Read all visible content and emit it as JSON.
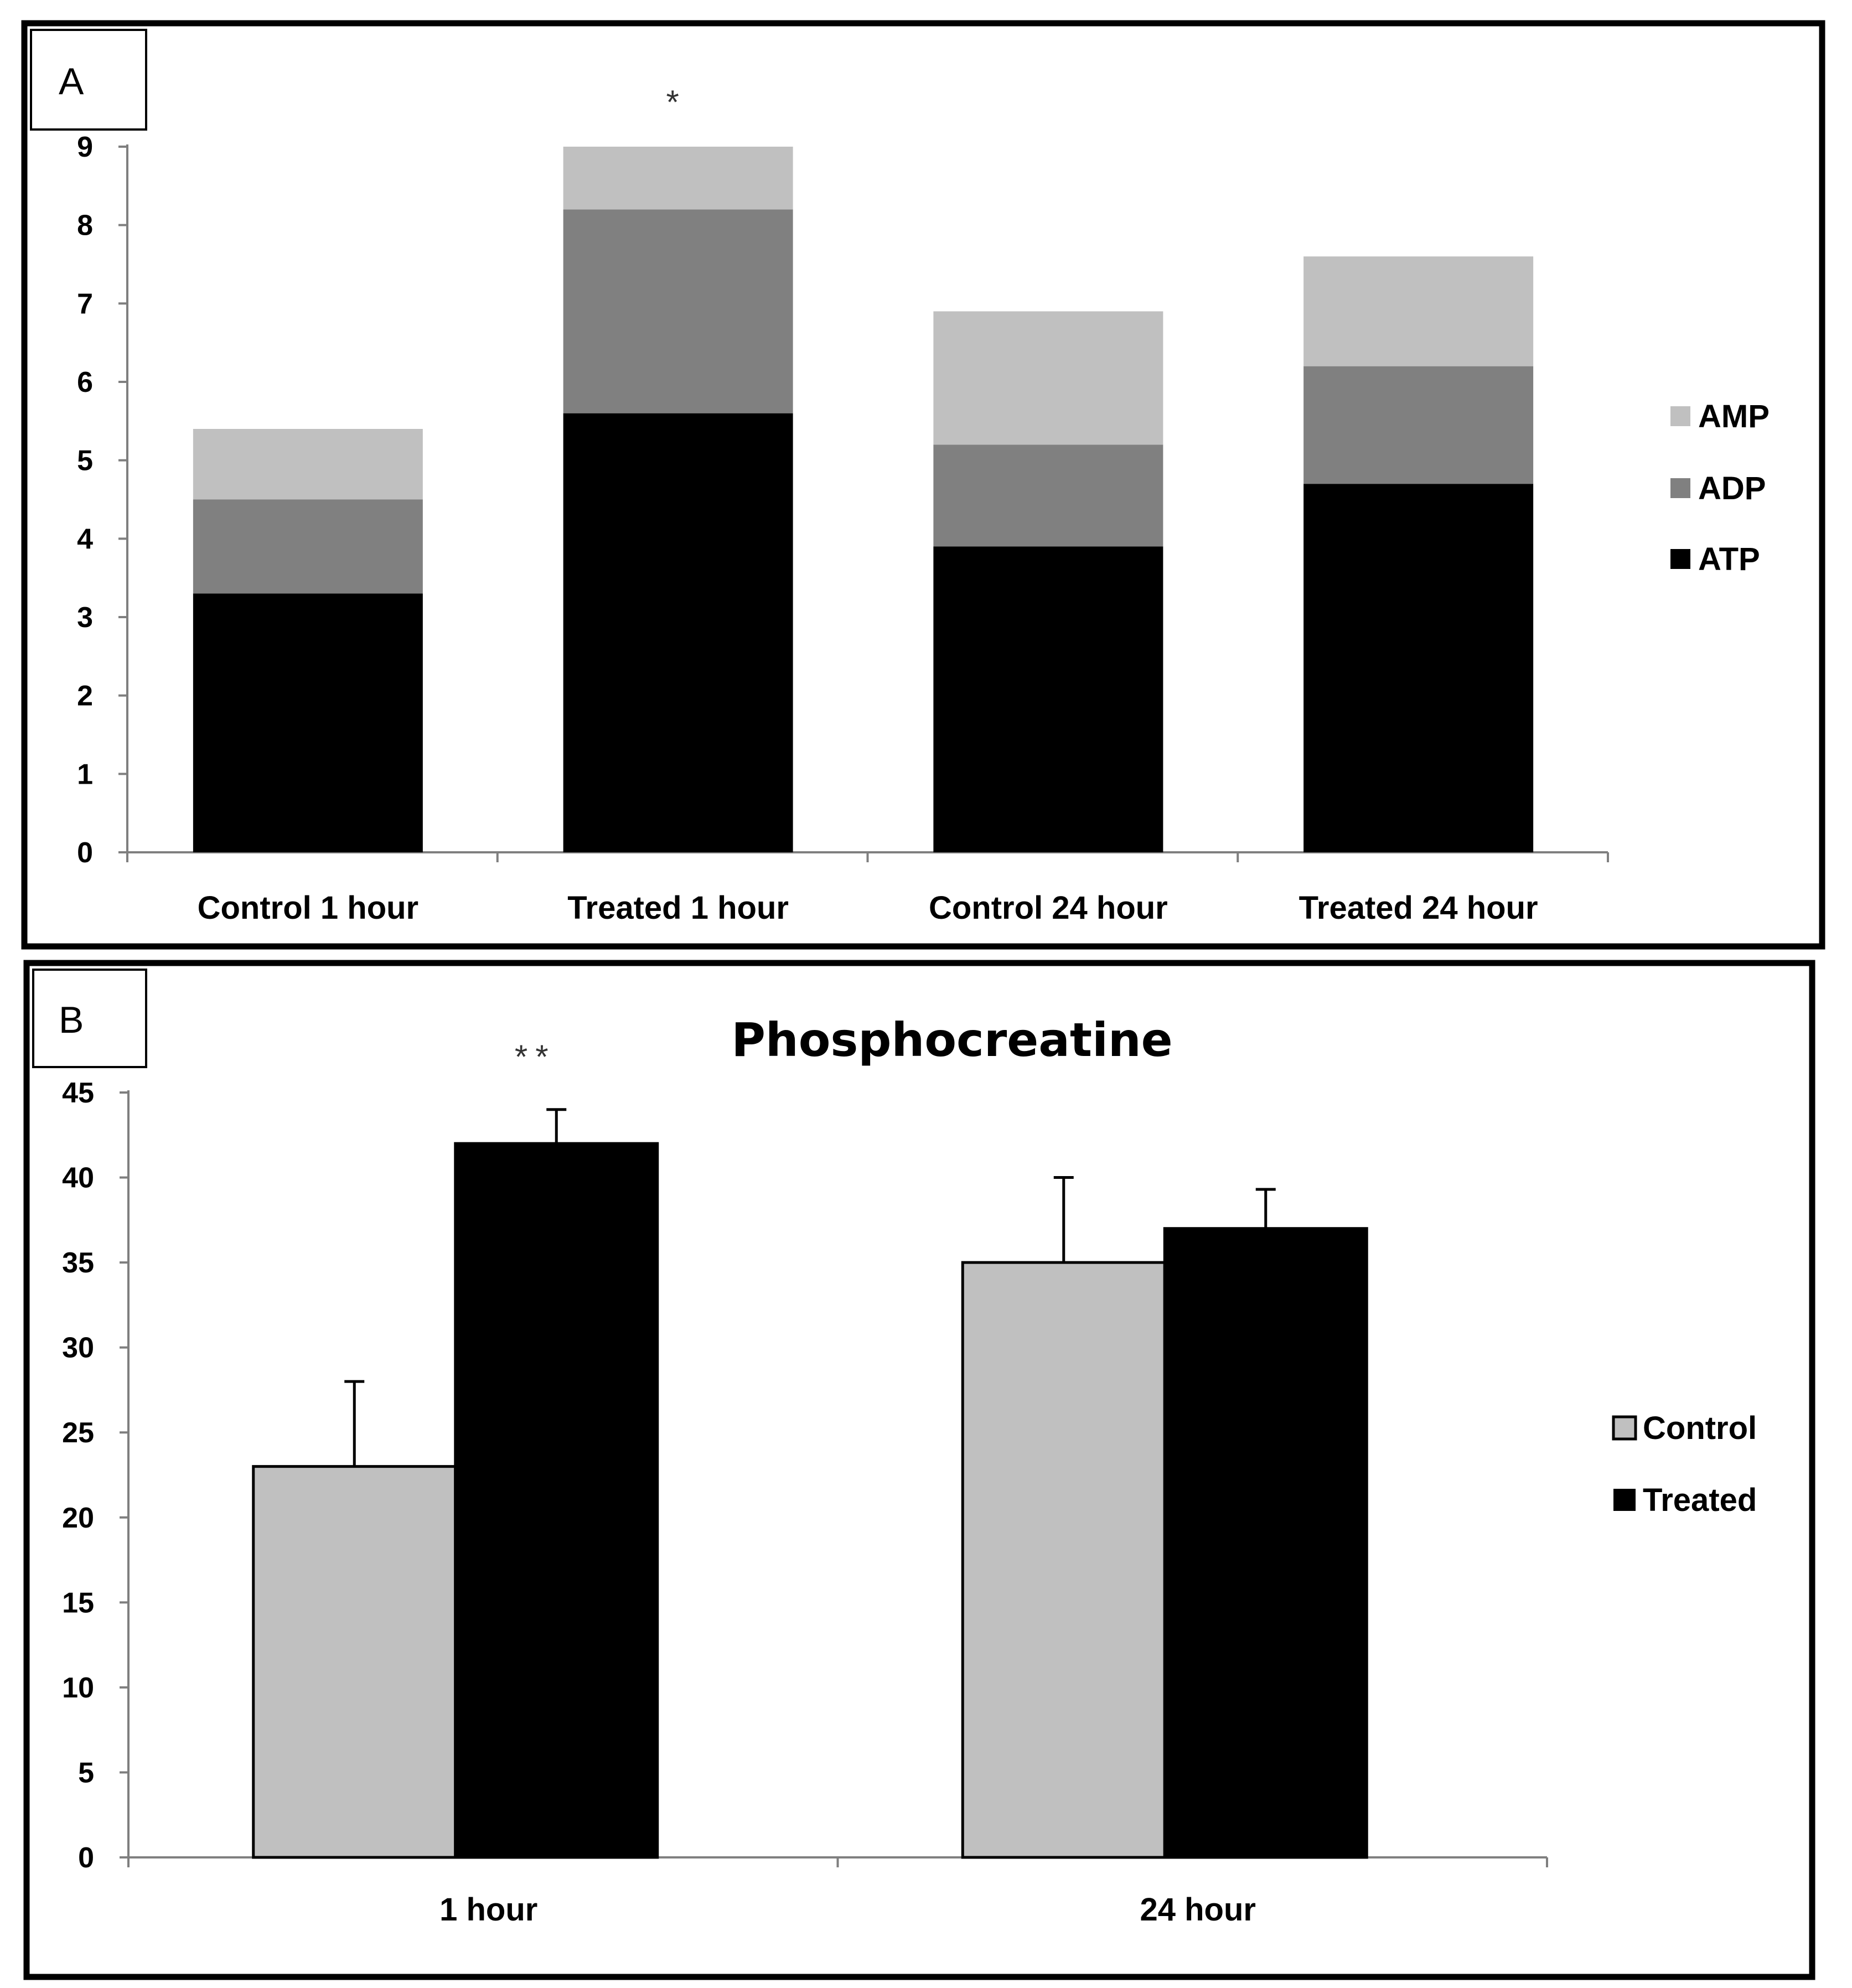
{
  "colors": {
    "amp": "#c0c0c0",
    "adp": "#808080",
    "atp": "#000000",
    "control": "#c0c0c0",
    "treated": "#000000",
    "axis": "#7f7f7f",
    "frame": "#000000"
  },
  "chart_data": [
    {
      "panel": "A",
      "type": "bar",
      "stacked": true,
      "title": "",
      "xlabel": "",
      "ylabel": "",
      "ylim": [
        0,
        9
      ],
      "yticks": [
        "0",
        "1",
        "2",
        "3",
        "4",
        "5",
        "6",
        "7",
        "8",
        "9"
      ],
      "categories": [
        "Control 1 hour",
        "Treated 1 hour",
        "Control 24 hour",
        "Treated 24 hour"
      ],
      "series": [
        {
          "name": "ATP",
          "values": [
            3.3,
            5.6,
            3.9,
            4.7
          ]
        },
        {
          "name": "ADP",
          "values": [
            1.2,
            2.6,
            1.3,
            1.5
          ]
        },
        {
          "name": "AMP",
          "values": [
            0.9,
            0.8,
            1.7,
            1.4
          ]
        }
      ],
      "legend": [
        "AMP",
        "ADP",
        "ATP"
      ],
      "legend_position": "right",
      "annotations": [
        {
          "category": "Treated 1 hour",
          "text": "*"
        }
      ]
    },
    {
      "panel": "B",
      "type": "bar",
      "stacked": false,
      "title": "Phosphocreatine",
      "xlabel": "",
      "ylabel": "",
      "ylim": [
        0,
        45
      ],
      "yticks": [
        "0",
        "5",
        "10",
        "15",
        "20",
        "25",
        "30",
        "35",
        "40",
        "45"
      ],
      "categories": [
        "1 hour",
        "24 hour"
      ],
      "series": [
        {
          "name": "Control",
          "values": [
            23,
            35
          ],
          "errors": [
            5,
            5
          ]
        },
        {
          "name": "Treated",
          "values": [
            42,
            37
          ],
          "errors": [
            2,
            2.3
          ]
        }
      ],
      "legend": [
        "Control",
        "Treated"
      ],
      "legend_position": "right",
      "annotations": [
        {
          "category": "1 hour",
          "text": "**"
        }
      ]
    }
  ]
}
